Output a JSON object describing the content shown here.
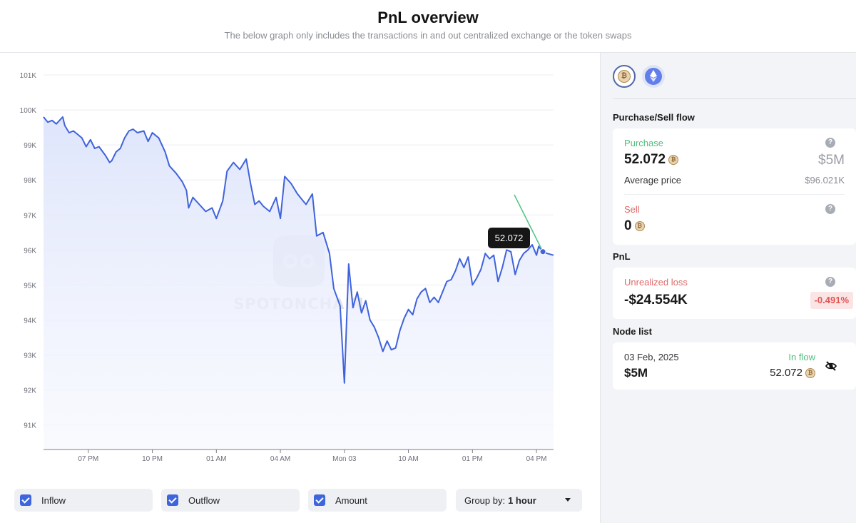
{
  "header": {
    "title": "PnL overview",
    "subtitle": "The below graph only includes the transactions in and out centralized exchange or the token swaps"
  },
  "chart_data": {
    "type": "area",
    "x_ticks": [
      "07 PM",
      "10 PM",
      "01 AM",
      "04 AM",
      "Mon 03",
      "10 AM",
      "01 PM",
      "04 PM"
    ],
    "y_ticks": [
      "101K",
      "100K",
      "99K",
      "98K",
      "97K",
      "96K",
      "95K",
      "94K",
      "93K",
      "92K",
      "91K"
    ],
    "ylim": [
      90300,
      101000
    ],
    "x_range": [
      16.9,
      40.8
    ],
    "grid": true,
    "series": [
      {
        "color": "#3f63dc",
        "x": [
          16.9,
          17.1,
          17.3,
          17.5,
          17.8,
          17.9,
          18.1,
          18.3,
          18.5,
          18.7,
          18.9,
          19.1,
          19.3,
          19.5,
          19.8,
          20.0,
          20.1,
          20.3,
          20.5,
          20.7,
          20.9,
          21.1,
          21.3,
          21.6,
          21.8,
          22.0,
          22.3,
          22.6,
          22.8,
          23.1,
          23.4,
          23.6,
          23.7,
          23.9,
          24.2,
          24.5,
          24.8,
          25.0,
          25.3,
          25.5,
          25.8,
          26.1,
          26.4,
          26.6,
          26.8,
          27.0,
          27.2,
          27.5,
          27.8,
          28.0,
          28.2,
          28.5,
          28.8,
          29.0,
          29.2,
          29.5,
          29.7,
          30.0,
          30.3,
          30.5,
          30.8,
          31.0,
          31.2,
          31.4,
          31.6,
          31.8,
          32.0,
          32.2,
          32.4,
          32.6,
          32.8,
          33.0,
          33.2,
          33.4,
          33.6,
          33.8,
          34.0,
          34.2,
          34.4,
          34.6,
          34.8,
          35.0,
          35.2,
          35.4,
          35.6,
          35.8,
          36.0,
          36.2,
          36.4,
          36.6,
          36.8,
          37.0,
          37.2,
          37.4,
          37.6,
          37.8,
          38.0,
          38.2,
          38.4,
          38.6,
          38.8,
          39.0,
          39.2,
          39.4,
          39.6,
          39.8,
          40.0,
          40.1,
          40.3,
          40.5,
          40.8
        ],
        "values": [
          99800,
          99650,
          99700,
          99600,
          99800,
          99550,
          99350,
          99400,
          99300,
          99200,
          98950,
          99150,
          98900,
          98950,
          98700,
          98500,
          98550,
          98800,
          98900,
          99200,
          99400,
          99450,
          99350,
          99400,
          99100,
          99350,
          99200,
          98800,
          98400,
          98200,
          97950,
          97700,
          97200,
          97500,
          97300,
          97100,
          97200,
          96900,
          97400,
          98250,
          98500,
          98300,
          98600,
          97900,
          97300,
          97400,
          97250,
          97100,
          97500,
          96900,
          98100,
          97900,
          97600,
          97450,
          97300,
          97600,
          96400,
          96500,
          95900,
          94900,
          94400,
          92200,
          95600,
          94350,
          94800,
          94200,
          94550,
          94000,
          93800,
          93500,
          93100,
          93400,
          93150,
          93200,
          93700,
          94050,
          94300,
          94150,
          94600,
          94800,
          94900,
          94500,
          94650,
          94500,
          94800,
          95100,
          95150,
          95400,
          95750,
          95500,
          95800,
          95000,
          95200,
          95450,
          95900,
          95750,
          95850,
          95100,
          95500,
          96000,
          95950,
          95300,
          95700,
          95900,
          96000,
          96150,
          95850,
          96100,
          95950,
          95900,
          95850
        ]
      }
    ],
    "tooltip": {
      "x": 40.3,
      "value": "52.072"
    }
  },
  "watermark": {
    "text": "SPOTONCHAIN"
  },
  "controls": {
    "inflow_label": "Inflow",
    "outflow_label": "Outflow",
    "amount_label": "Amount",
    "group_by_label": "Group by:",
    "group_by_value": "1 hour"
  },
  "sidebar": {
    "coins": [
      "bitcoin-icon",
      "ethereum-icon"
    ],
    "purchase_sell_title": "Purchase/Sell flow",
    "purchase": {
      "label": "Purchase",
      "amount": "52.072",
      "usd": "$5M",
      "avg_label": "Average price",
      "avg_value": "$96.021K"
    },
    "sell": {
      "label": "Sell",
      "amount": "0"
    },
    "pnl_title": "PnL",
    "pnl": {
      "label": "Unrealized loss",
      "value": "-$24.554K",
      "percent": "-0.491%"
    },
    "node_title": "Node list",
    "node": {
      "date": "03 Feb, 2025",
      "usd": "$5M",
      "flow": "In flow",
      "amount": "52.072"
    },
    "colors": {
      "green": "#4fbd7c",
      "red": "#e06a6a",
      "accent": "#3d66dd"
    }
  }
}
